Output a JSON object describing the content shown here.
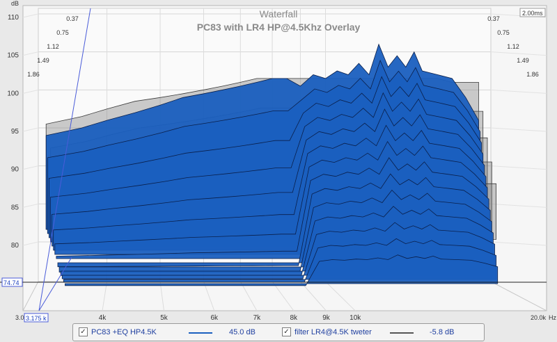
{
  "chart_data": {
    "type": "area",
    "title": "Waterfall",
    "subtitle": "PC83 with LR4 HP@4.5Khz Overlay",
    "xlabel": "Hz",
    "ylabel": "dB",
    "x_scale": "log",
    "xlim": [
      3000,
      20000
    ],
    "ylim": [
      74.74,
      110
    ],
    "x_ticks": [
      4000,
      5000,
      6000,
      7000,
      8000,
      9000,
      10000
    ],
    "x_tick_labels": [
      "4k",
      "5k",
      "6k",
      "7k",
      "8k",
      "9k",
      "10k"
    ],
    "x_start_label": "3.0",
    "x_end_label": "20.0k",
    "x_cursor_label": "3.175 k",
    "y_ticks": [
      80,
      85,
      90,
      95,
      100,
      105,
      110
    ],
    "y_cursor_label": "74.74",
    "time_axis_label": "2.00ms",
    "time_ticks_left": [
      "0.37",
      "0.75",
      "1.12",
      "1.49",
      "1.86"
    ],
    "time_ticks_right": [
      "0.37",
      "0.75",
      "1.12",
      "1.49",
      "1.86"
    ],
    "grid": true,
    "series": [
      {
        "name": "PC83 +EQ HP4.5K",
        "color": "#1a5fbf",
        "legend_value": "45.0 dB",
        "x": [
          3100,
          3600,
          4000,
          4500,
          5000,
          5500,
          6000,
          6500,
          7000,
          7500,
          8000,
          8500,
          9000,
          9500,
          10000,
          10500,
          11000,
          11500,
          12000,
          12500,
          13000,
          13500,
          14000,
          14500,
          15000,
          16000,
          17000,
          18000,
          19000
        ],
        "y": [
          94,
          95,
          96,
          97,
          98,
          99,
          99.5,
          100,
          100.5,
          101,
          101.5,
          101.5,
          100.5,
          102,
          101.5,
          102.5,
          102,
          103.5,
          102,
          106,
          103,
          104.5,
          103,
          105,
          102.5,
          102,
          101.5,
          99,
          96
        ]
      },
      {
        "name": "filter LR4@4.5K tweter",
        "color": "#555555",
        "legend_value": "-5.8 dB",
        "x": [
          3100,
          3600,
          4000,
          4500,
          5000,
          5500,
          6000,
          6500,
          7000,
          7500,
          8000,
          8500,
          9000,
          9500,
          10000,
          11000,
          12000,
          13000,
          14000,
          15000,
          16000,
          17000,
          18000,
          19000
        ],
        "y": [
          95.5,
          96.5,
          97.5,
          98.5,
          99,
          99.5,
          100,
          100.5,
          101,
          101.5,
          101.5,
          101.5,
          101.5,
          101.5,
          101.5,
          101.5,
          101.5,
          101.5,
          101.5,
          101.5,
          101.5,
          101,
          101,
          101
        ]
      }
    ]
  },
  "legend": {
    "items": [
      {
        "name": "PC83 +EQ HP4.5K",
        "value": "45.0 dB",
        "color": "#1a5fbf",
        "checked": "✓"
      },
      {
        "name": "filter LR4@4.5K tweter",
        "value": "-5.8 dB",
        "color": "#555555",
        "checked": "✓"
      }
    ]
  }
}
